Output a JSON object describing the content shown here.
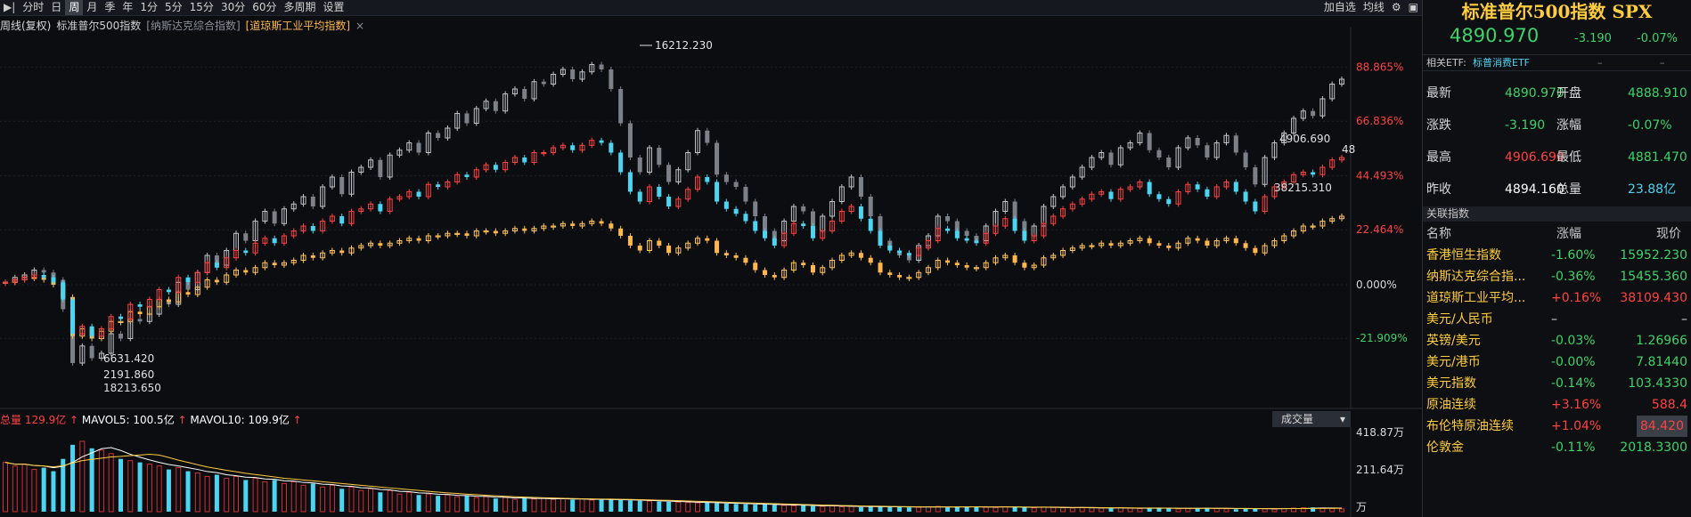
{
  "toolbar": {
    "items": [
      "分时",
      "日",
      "周",
      "月",
      "季",
      "年",
      "1分",
      "5分",
      "15分",
      "30分",
      "60分",
      "多周期",
      "设置"
    ],
    "active_index": 2,
    "right": [
      "加自选",
      "均线"
    ]
  },
  "legend": {
    "prefix": "周线(复权)",
    "series": [
      {
        "label": "标准普尔500指数",
        "color": "#cfcfcf"
      },
      {
        "label": "[纳斯达克综合指数]",
        "color": "#8a8f98"
      },
      {
        "label": "[道琼斯工业平均指数]",
        "color": "#ffb84d"
      }
    ]
  },
  "chart_data": {
    "type": "candlestick",
    "axis_labels": [
      {
        "value": "88.865%",
        "color": "#ff4242"
      },
      {
        "value": "66.836%",
        "color": "#ff4242"
      },
      {
        "value": "44.493%",
        "color": "#ff4242"
      },
      {
        "value": "22.464%",
        "color": "#ff4242"
      },
      {
        "value": "0.000%",
        "color": "#d8d8d8"
      },
      {
        "value": "-21.909%",
        "color": "#3ed26a"
      }
    ],
    "annotations": {
      "nasdaq_high": "16212.230",
      "low1": "6631.420",
      "low2": "2191.860",
      "low3": "18213.650",
      "spx_high": "4906.690",
      "dow_last": "38215.310",
      "edge_label": "48"
    },
    "nasdaq": [
      1,
      3,
      4,
      6,
      5,
      2,
      -10,
      -32,
      -25,
      -30,
      -28,
      -20,
      -22,
      -14,
      -15,
      -12,
      -6,
      -8,
      1,
      -2,
      5,
      12,
      8,
      14,
      21,
      18,
      26,
      30,
      25,
      31,
      33,
      36,
      32,
      40,
      44,
      37,
      46,
      48,
      51,
      44,
      53,
      55,
      58,
      54,
      62,
      60,
      64,
      70,
      66,
      72,
      75,
      71,
      78,
      80,
      76,
      83,
      82,
      86,
      88,
      84,
      87,
      90,
      88,
      80,
      66,
      52,
      46,
      56,
      49,
      42,
      47,
      54,
      63,
      58,
      45,
      42,
      40,
      34,
      28,
      22,
      18,
      26,
      32,
      30,
      22,
      28,
      34,
      40,
      44,
      36,
      28,
      18,
      14,
      12,
      10,
      16,
      20,
      28,
      26,
      22,
      20,
      18,
      24,
      30,
      34,
      26,
      20,
      24,
      32,
      36,
      40,
      44,
      48,
      52,
      54,
      49,
      56,
      58,
      62,
      55,
      52,
      48,
      56,
      60,
      57,
      52,
      58,
      61,
      54,
      48,
      41,
      52,
      58,
      62,
      68,
      71,
      69,
      76,
      82,
      84
    ],
    "spx": [
      1,
      2,
      3,
      4,
      3,
      1,
      -6,
      -20,
      -17,
      -21,
      -18,
      -13,
      -14,
      -8,
      -9,
      -6,
      -2,
      -3,
      3,
      1,
      5,
      9,
      7,
      11,
      14,
      13,
      17,
      19,
      17,
      20,
      22,
      24,
      22,
      26,
      28,
      25,
      30,
      31,
      33,
      30,
      35,
      36,
      38,
      36,
      41,
      40,
      42,
      45,
      44,
      47,
      49,
      47,
      50,
      52,
      50,
      54,
      54,
      56,
      57,
      55,
      57,
      59,
      58,
      54,
      46,
      38,
      34,
      40,
      36,
      32,
      35,
      39,
      44,
      42,
      34,
      31,
      29,
      26,
      22,
      19,
      16,
      21,
      25,
      24,
      19,
      22,
      26,
      30,
      32,
      27,
      22,
      16,
      14,
      13,
      12,
      15,
      18,
      23,
      22,
      19,
      18,
      17,
      21,
      24,
      27,
      22,
      18,
      20,
      25,
      28,
      31,
      33,
      35,
      37,
      38,
      35,
      39,
      40,
      42,
      37,
      35,
      33,
      38,
      41,
      39,
      36,
      40,
      42,
      38,
      34,
      30,
      36,
      40,
      42,
      45,
      46,
      45,
      48,
      51,
      52
    ],
    "dow": [
      1,
      2,
      3,
      3,
      2,
      0,
      -5,
      -21,
      -18,
      -22,
      -19,
      -15,
      -15,
      -11,
      -12,
      -9,
      -6,
      -7,
      -3,
      -4,
      -1,
      2,
      1,
      4,
      6,
      5,
      7,
      9,
      8,
      9,
      10,
      12,
      11,
      13,
      14,
      13,
      15,
      16,
      17,
      16,
      17,
      18,
      19,
      18,
      20,
      20,
      21,
      21,
      20,
      22,
      22,
      21,
      22,
      23,
      22,
      23,
      24,
      24,
      25,
      24,
      25,
      26,
      25,
      23,
      20,
      16,
      14,
      18,
      16,
      13,
      15,
      17,
      19,
      18,
      13,
      12,
      11,
      9,
      6,
      4,
      3,
      6,
      9,
      8,
      5,
      7,
      10,
      12,
      13,
      11,
      9,
      5,
      4,
      3,
      3,
      5,
      7,
      10,
      9,
      8,
      7,
      7,
      9,
      11,
      12,
      9,
      7,
      8,
      11,
      12,
      14,
      15,
      16,
      16,
      17,
      16,
      17,
      18,
      19,
      17,
      16,
      15,
      17,
      19,
      18,
      16,
      18,
      19,
      17,
      15,
      13,
      16,
      18,
      20,
      22,
      24,
      24,
      26,
      27,
      28
    ]
  },
  "volume": {
    "header": {
      "total_label": "总量",
      "total_value": "129.9亿",
      "mavol5": "MAVOL5: 100.5亿",
      "mavol10": "MAVOL10: 109.9亿"
    },
    "dropdown": "成交量",
    "axis": [
      "418.87万",
      "211.64万",
      "万"
    ],
    "values": [
      280,
      260,
      270,
      240,
      250,
      230,
      300,
      380,
      400,
      360,
      350,
      330,
      300,
      290,
      280,
      270,
      260,
      240,
      250,
      230,
      220,
      200,
      210,
      190,
      200,
      180,
      190,
      170,
      180,
      160,
      170,
      150,
      160,
      140,
      150,
      130,
      140,
      120,
      130,
      110,
      120,
      100,
      110,
      95,
      100,
      90,
      95,
      85,
      90,
      80,
      85,
      75,
      80,
      70,
      78,
      72,
      76,
      70,
      74,
      68,
      72,
      66,
      70,
      68,
      66,
      64,
      62,
      60,
      58,
      56,
      54,
      52,
      50,
      52,
      48,
      46,
      44,
      42,
      40,
      42,
      38,
      36,
      34,
      36,
      32,
      30,
      34,
      28,
      30,
      26,
      28,
      30,
      26,
      28,
      24,
      26,
      28,
      30,
      24,
      26,
      28,
      30,
      26,
      24,
      28,
      26,
      24,
      22,
      26,
      24,
      22,
      20,
      24,
      22,
      20,
      18,
      22,
      20,
      18,
      20,
      22,
      18,
      16,
      18,
      20,
      22,
      18,
      16,
      14,
      18,
      20,
      16,
      14,
      18,
      20,
      22,
      24,
      20,
      18,
      16
    ]
  },
  "quote": {
    "title": "标准普尔500指数 SPX",
    "price": "4890.970",
    "change": "-3.190",
    "pct": "-0.07%",
    "etf_label": "相关ETF:",
    "etf_value": "标普消费ETF",
    "stats": [
      {
        "l1": "最新",
        "v1": "4890.970",
        "c1": "#3ed26a",
        "l2": "开盘",
        "v2": "4888.910",
        "c2": "#3ed26a"
      },
      {
        "l1": "涨跌",
        "v1": "-3.190",
        "c1": "#3ed26a",
        "l2": "涨幅",
        "v2": "-0.07%",
        "c2": "#3ed26a"
      },
      {
        "l1": "最高",
        "v1": "4906.690",
        "c1": "#ff4242",
        "l2": "最低",
        "v2": "4881.470",
        "c2": "#3ed26a"
      },
      {
        "l1": "昨收",
        "v1": "4894.160",
        "c1": "#ffffff",
        "l2": "总量",
        "v2": "23.88亿",
        "c2": "#4cd4f0"
      }
    ],
    "related_header": "关联指数",
    "col_name": "名称",
    "col_pct": "涨幅",
    "col_price": "现价",
    "related": [
      {
        "name": "香港恒生指数",
        "pct": "-1.60%",
        "price": "15952.230",
        "pc": "#3ed26a"
      },
      {
        "name": "纳斯达克综合指...",
        "pct": "-0.36%",
        "price": "15455.360",
        "pc": "#3ed26a"
      },
      {
        "name": "道琼斯工业平均...",
        "pct": "+0.16%",
        "price": "38109.430",
        "pc": "#ff4242"
      },
      {
        "name": "美元/人民币",
        "pct": "–",
        "price": "–",
        "pc": "#d8d8d8"
      },
      {
        "name": "英镑/美元",
        "pct": "-0.03%",
        "price": "1.26966",
        "pc": "#3ed26a"
      },
      {
        "name": "美元/港币",
        "pct": "-0.00%",
        "price": "7.81440",
        "pc": "#3ed26a"
      },
      {
        "name": "美元指数",
        "pct": "-0.14%",
        "price": "103.4330",
        "pc": "#3ed26a"
      },
      {
        "name": "原油连续",
        "pct": "+3.16%",
        "price": "588.4",
        "pc": "#ff4242"
      },
      {
        "name": "布伦特原油连续",
        "pct": "+1.04%",
        "price": "84.420",
        "pc": "#ff4242"
      },
      {
        "name": "伦敦金",
        "pct": "-0.11%",
        "price": "2018.3300",
        "pc": "#3ed26a"
      }
    ]
  }
}
